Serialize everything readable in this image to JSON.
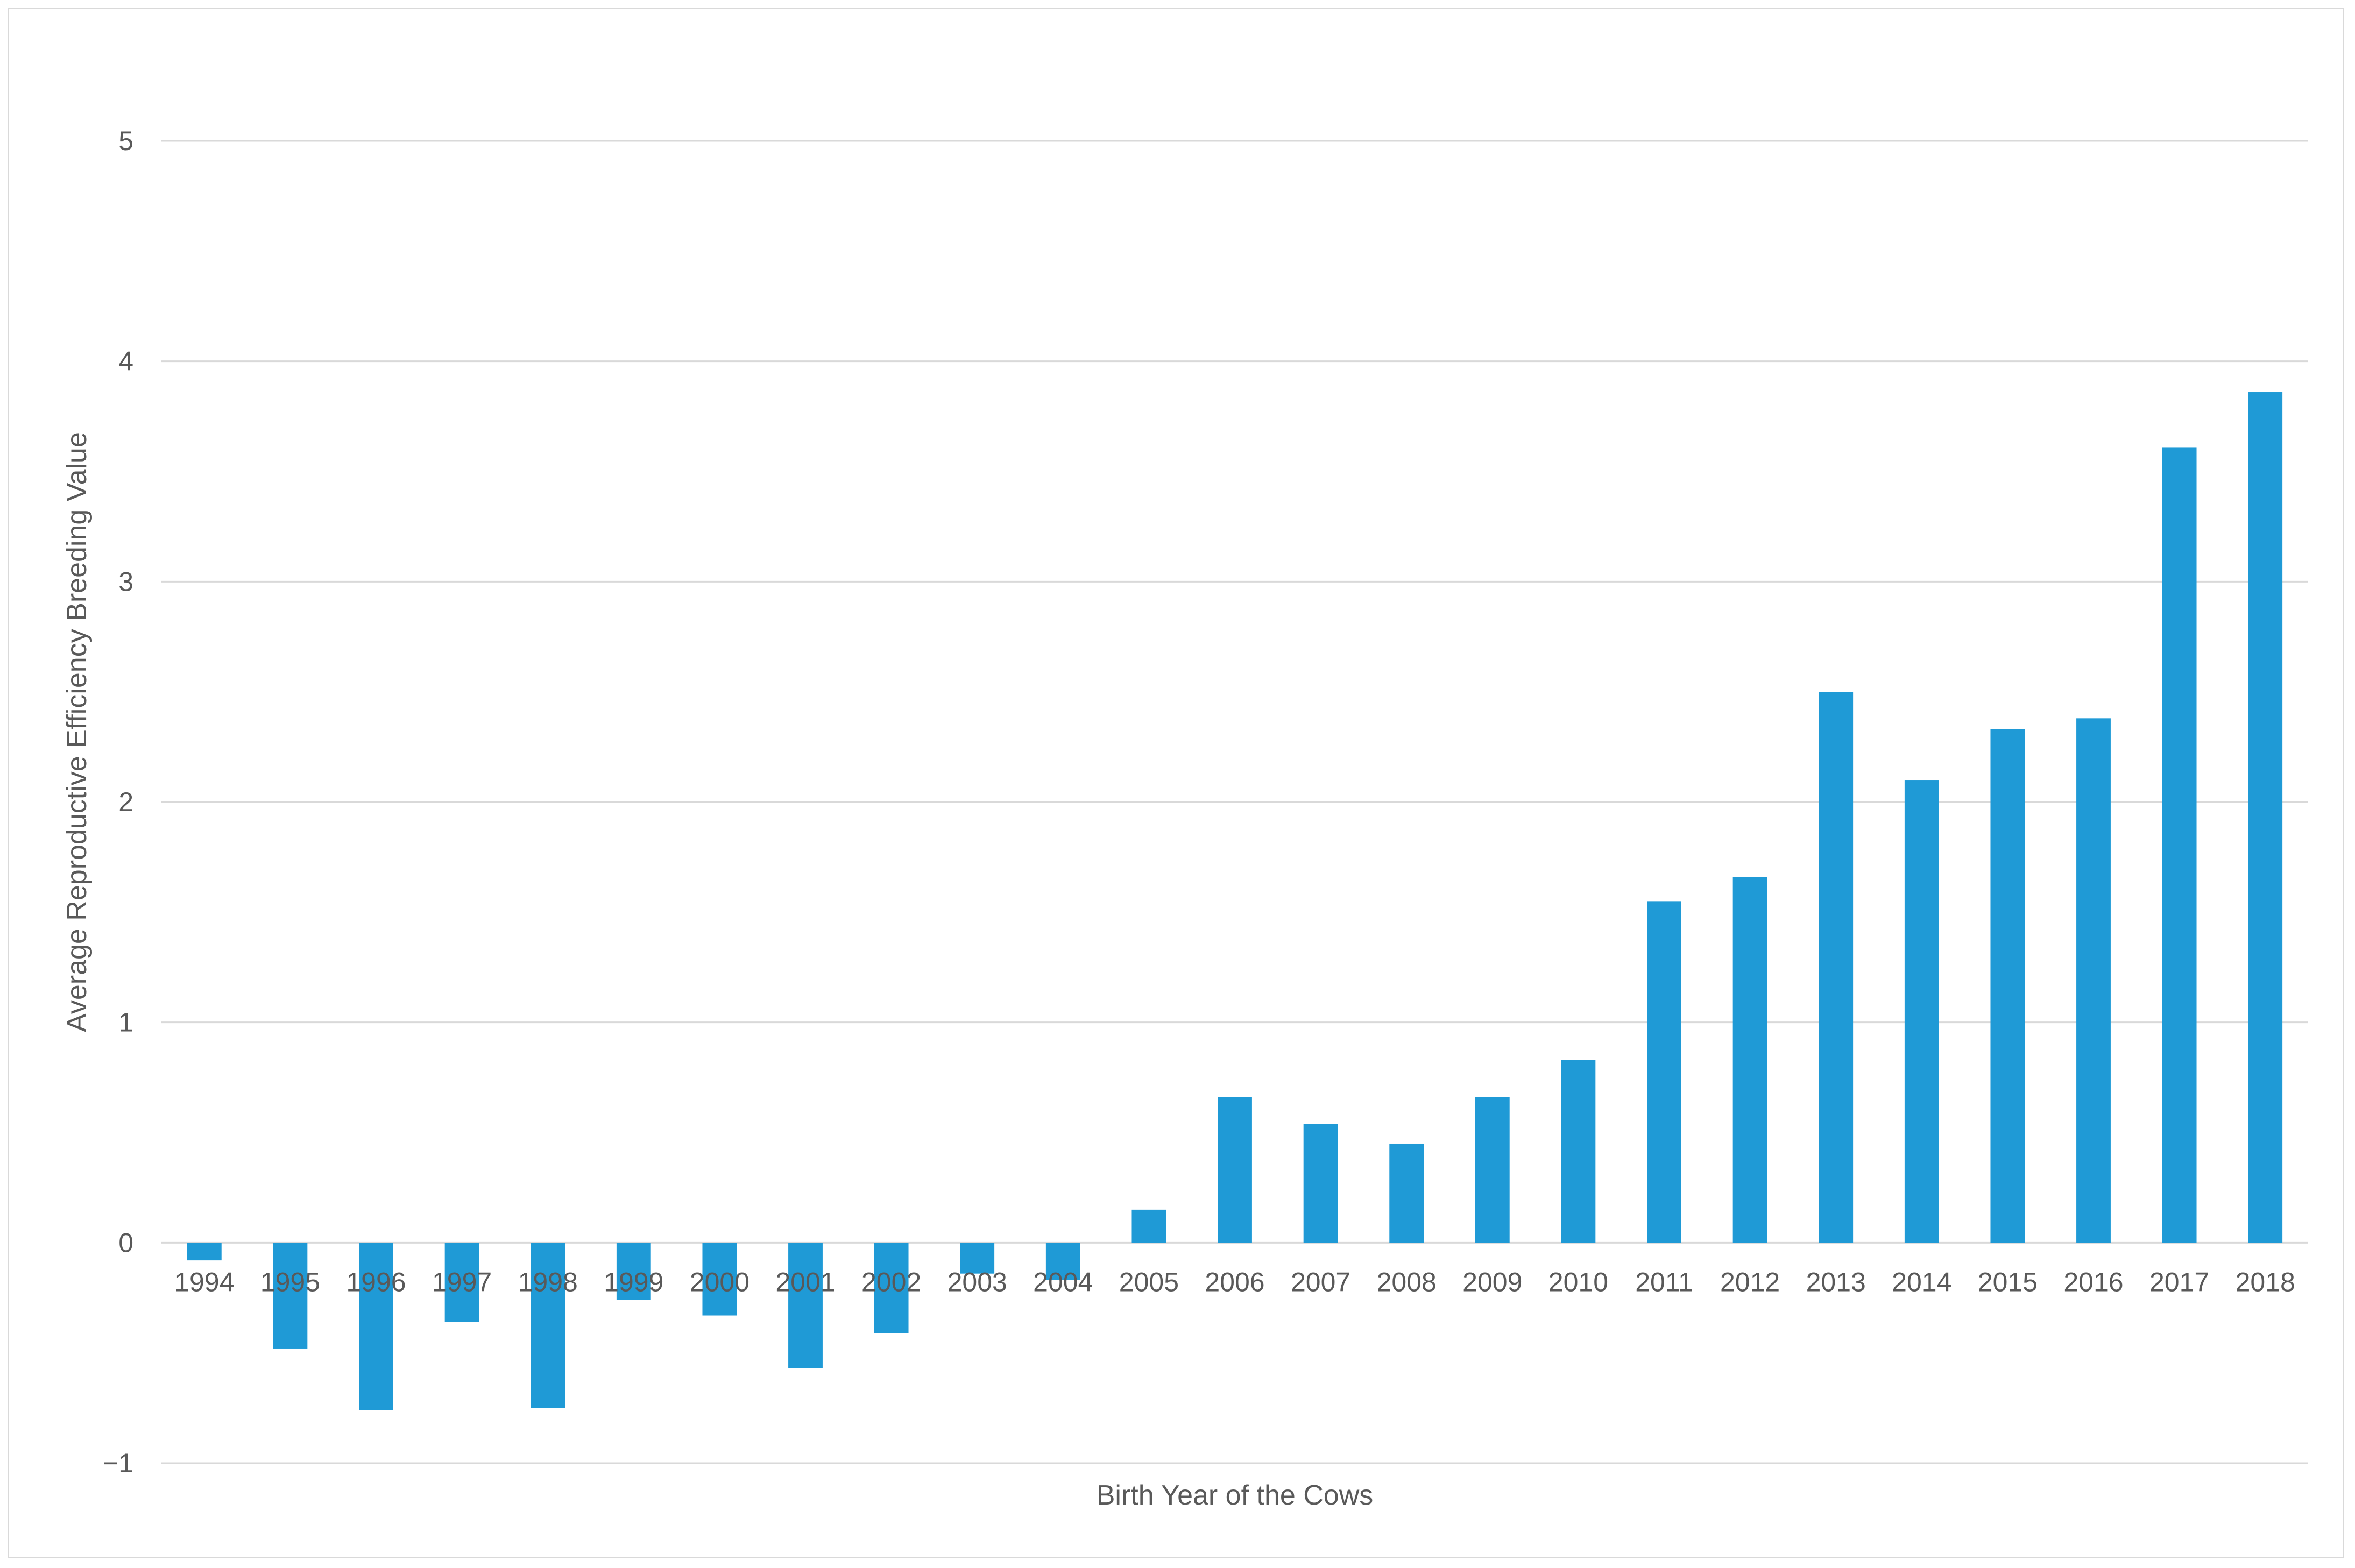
{
  "chart_data": {
    "type": "bar",
    "xlabel": "Birth Year of the Cows",
    "ylabel": "Average Reproductive Efficiency Breeding Value",
    "ylim": [
      -1,
      5
    ],
    "yticks": [
      "−1",
      "0",
      "1",
      "2",
      "3",
      "4",
      "5"
    ],
    "grid": true,
    "bar_color": "#1f9ad6",
    "categories": [
      "1994",
      "1995",
      "1996",
      "1997",
      "1998",
      "1999",
      "2000",
      "2001",
      "2002",
      "2003",
      "2004",
      "2005",
      "2006",
      "2007",
      "2008",
      "2009",
      "2010",
      "2011",
      "2012",
      "2013",
      "2014",
      "2015",
      "2016",
      "2017",
      "2018"
    ],
    "values": [
      -0.08,
      -0.48,
      -0.76,
      -0.36,
      -0.75,
      -0.26,
      -0.33,
      -0.57,
      -0.41,
      -0.14,
      -0.17,
      0.15,
      0.66,
      0.54,
      0.45,
      0.66,
      0.83,
      1.55,
      1.66,
      2.5,
      2.1,
      2.33,
      2.38,
      3.61,
      3.86
    ]
  }
}
